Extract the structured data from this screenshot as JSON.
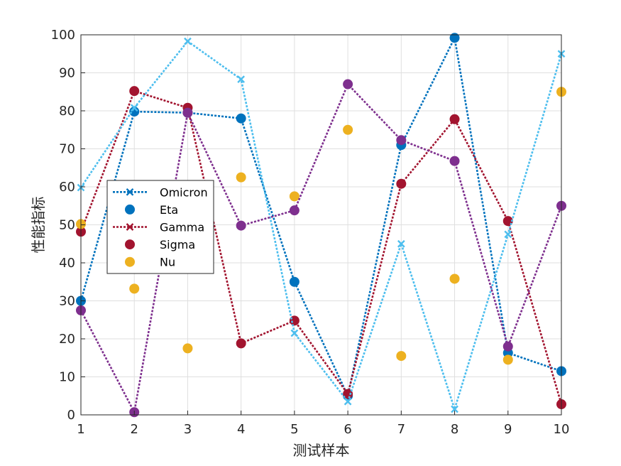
{
  "chart_data": {
    "type": "line",
    "title": "",
    "xlabel": "测试样本",
    "ylabel": "性能指标",
    "xlim": [
      1,
      10
    ],
    "ylim": [
      0,
      100
    ],
    "xticks": [
      1,
      2,
      3,
      4,
      5,
      6,
      7,
      8,
      9,
      10
    ],
    "yticks": [
      0,
      10,
      20,
      30,
      40,
      50,
      60,
      70,
      80,
      90,
      100
    ],
    "grid": true,
    "legend_position": "middle-left",
    "x": [
      1,
      2,
      3,
      4,
      5,
      6,
      7,
      8,
      9,
      10
    ],
    "series": [
      {
        "name": "Omicron",
        "color": "#0072BD",
        "line": "dotted",
        "marker": "x",
        "values": [
          30,
          79.8,
          79.5,
          78,
          35,
          5,
          71,
          99.2,
          16.3,
          11.5
        ]
      },
      {
        "name": "Eta",
        "color": "#0072BD",
        "line": "none",
        "marker": "circle",
        "values": [
          30,
          79.8,
          79.5,
          78,
          35,
          5,
          71,
          99.2,
          16.3,
          11.5
        ]
      },
      {
        "name": "Gamma",
        "color": "#A2142F",
        "line": "dotted",
        "marker": "x",
        "values": [
          48.2,
          85.2,
          80.8,
          18.8,
          24.8,
          5.5,
          60.8,
          77.8,
          51,
          2.8
        ]
      },
      {
        "name": "Sigma",
        "color": "#A2142F",
        "line": "none",
        "marker": "circle",
        "values": [
          48.2,
          85.2,
          80.8,
          18.8,
          24.8,
          5.5,
          60.8,
          77.8,
          51,
          2.8
        ]
      },
      {
        "name": "Nu",
        "color": "#EDB120",
        "line": "none",
        "marker": "circle",
        "values": [
          50.2,
          33.2,
          17.5,
          62.5,
          57.5,
          75,
          15.5,
          35.8,
          14.5,
          85
        ]
      },
      {
        "name": "",
        "color": "#4DBEEE",
        "line": "dotted",
        "marker": "x",
        "values": [
          59.8,
          80.8,
          98.3,
          88.3,
          21.5,
          3.5,
          45,
          1.5,
          47.5,
          95
        ]
      },
      {
        "name": "",
        "color": "#7E2F8E",
        "line": "dotted",
        "marker": "circle",
        "values": [
          27.5,
          0.7,
          79.5,
          49.8,
          53.8,
          87,
          72.3,
          66.8,
          18,
          55
        ]
      }
    ]
  }
}
